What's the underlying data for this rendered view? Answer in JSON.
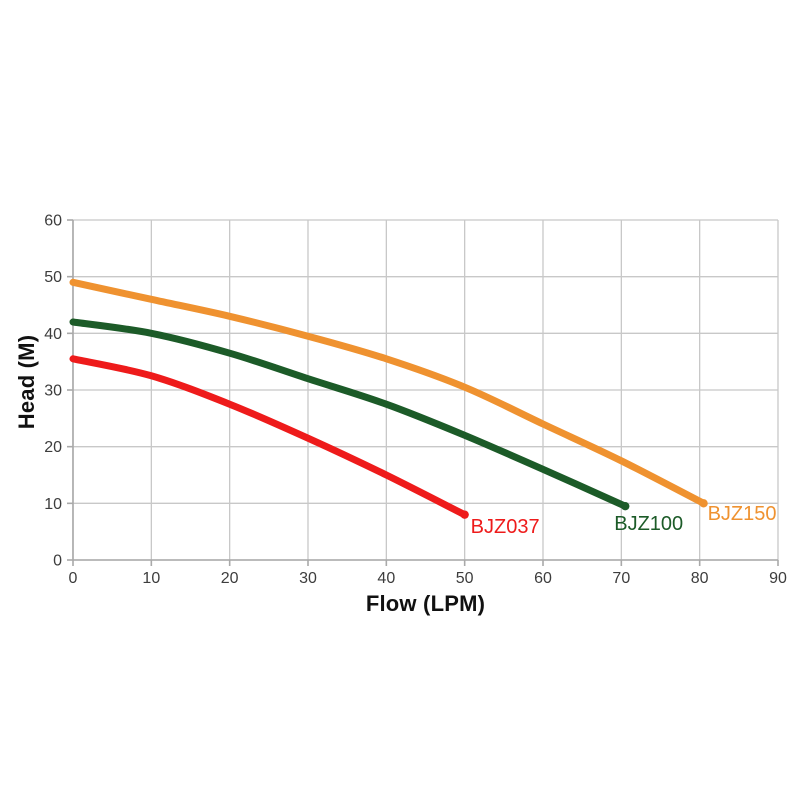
{
  "chart": {
    "xlabel": "Flow (LPM)",
    "ylabel": "Head (M)"
  },
  "chart_data": {
    "type": "line",
    "title": "",
    "xlabel": "Flow (LPM)",
    "ylabel": "Head (M)",
    "xlim": [
      0,
      90
    ],
    "ylim": [
      0,
      60
    ],
    "xticks": [
      0,
      10,
      20,
      30,
      40,
      50,
      60,
      70,
      80,
      90
    ],
    "yticks": [
      0,
      10,
      20,
      30,
      40,
      50,
      60
    ],
    "grid": true,
    "legend_position": "end-of-line-labels",
    "series": [
      {
        "name": "BJZ037",
        "color": "#ee1b1b",
        "points": [
          [
            0,
            35.5
          ],
          [
            10,
            32.5
          ],
          [
            20,
            27.5
          ],
          [
            30,
            21.5
          ],
          [
            40,
            15
          ],
          [
            50,
            8
          ]
        ],
        "label_offset": [
          6,
          2
        ]
      },
      {
        "name": "BJZ100",
        "color": "#1c5b28",
        "points": [
          [
            0,
            42
          ],
          [
            10,
            40
          ],
          [
            20,
            36.5
          ],
          [
            30,
            32
          ],
          [
            40,
            27.5
          ],
          [
            50,
            22
          ],
          [
            60,
            16
          ],
          [
            70.5,
            9.5
          ]
        ],
        "label_offset": [
          -11,
          8
        ]
      },
      {
        "name": "BJZ150",
        "color": "#ef9230",
        "points": [
          [
            0,
            49
          ],
          [
            10,
            46
          ],
          [
            20,
            43
          ],
          [
            30,
            39.5
          ],
          [
            40,
            35.5
          ],
          [
            50,
            30.5
          ],
          [
            60,
            24
          ],
          [
            70,
            17.5
          ],
          [
            80.5,
            10
          ]
        ],
        "label_offset": [
          4,
          1
        ]
      }
    ],
    "style": {
      "grid_color": "#c8c8c8",
      "axis_color": "#a9a9a9",
      "tick_label_color": "#3d3d3d",
      "axis_title_color": "#111111",
      "line_width": 7
    }
  }
}
